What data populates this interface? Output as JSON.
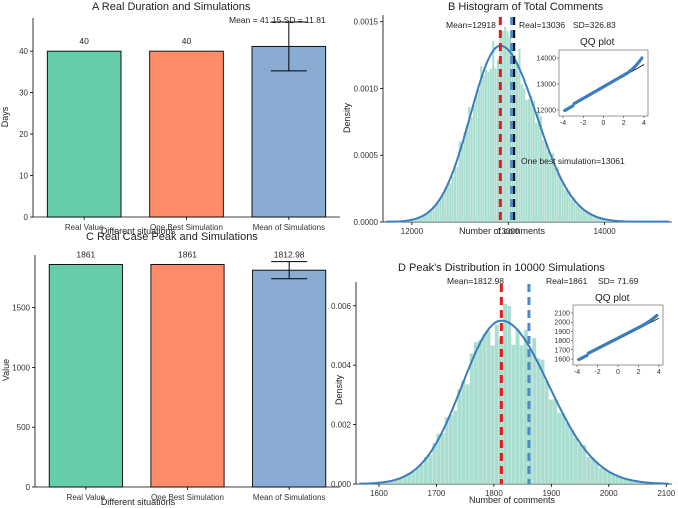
{
  "chart_data": [
    {
      "id": "A",
      "type": "bar",
      "title": "A Real Duration and Simulations",
      "xlabel": "Different situations",
      "ylabel": "Days",
      "categories": [
        "Real Value",
        "One Best Simulation",
        "Mean of Simulations"
      ],
      "values": [
        40,
        40,
        41.15
      ],
      "value_labels": [
        "40",
        "40",
        ""
      ],
      "error_bar": {
        "index": 2,
        "low": 35.25,
        "high": 47.05
      },
      "annotation": "Mean = 41.15 SD = 11.81",
      "ylim": [
        0,
        48
      ],
      "yticks": [
        0,
        10,
        20,
        30,
        40
      ],
      "colors": [
        "#66CDAA",
        "#FF8C69",
        "#8AACD2"
      ]
    },
    {
      "id": "B",
      "type": "histogram",
      "title": "B Histogram of Total Comments",
      "xlabel": "Number of comments",
      "ylabel": "Density",
      "xlim": [
        11700,
        14700
      ],
      "ylim": [
        0,
        0.00155
      ],
      "xticks": [
        12000,
        13000,
        14000
      ],
      "yticks": [
        0,
        0.0005,
        0.001,
        0.0015
      ],
      "ytick_labels": [
        "0.0000",
        "0.0005",
        "0.0010",
        "0.0015"
      ],
      "density_peak": 0.00132,
      "mean": 12918,
      "sd": 326.83,
      "real": 13036,
      "best_simulation": 13061,
      "annotations": {
        "mean": "Mean=12918",
        "real": "Real=13036",
        "sd": "SD=326.83",
        "best": "One  best simulation=13061"
      },
      "qq": {
        "title": "QQ plot",
        "xticks": [
          "-4",
          "-2",
          "0",
          "2",
          "4"
        ],
        "yticks": [
          "12000",
          "13000",
          "14000"
        ]
      }
    },
    {
      "id": "C",
      "type": "bar",
      "title": "C Real Case Peak and Simulations",
      "xlabel": "Different situations",
      "ylabel": "Value",
      "categories": [
        "Real Value",
        "One Best Simulation",
        "Mean of Simulations"
      ],
      "values": [
        1861,
        1861,
        1812.98
      ],
      "value_labels": [
        "1861",
        "1861",
        "1812.98"
      ],
      "error_bar": {
        "index": 2,
        "low": 1741,
        "high": 1885
      },
      "ylim": [
        0,
        1940
      ],
      "yticks": [
        0,
        500,
        1000,
        1500
      ],
      "colors": [
        "#66CDAA",
        "#FF8C69",
        "#8AACD2"
      ]
    },
    {
      "id": "D",
      "type": "histogram",
      "title": "D Peak's Distribution in 10000 Simulations",
      "xlabel": "Number of comments",
      "ylabel": "Density",
      "xlim": [
        1560,
        2110
      ],
      "ylim": [
        0,
        0.0068
      ],
      "xticks": [
        1600,
        1700,
        1800,
        1900,
        2000,
        2100
      ],
      "yticks": [
        0,
        0.002,
        0.004,
        0.006
      ],
      "ytick_labels": [
        "0.000",
        "0.002",
        "0.004",
        "0.006"
      ],
      "density_peak": 0.0055,
      "mean": 1812.98,
      "sd": 71.69,
      "real": 1861,
      "annotations": {
        "mean": "Mean=1812.98",
        "real": "Real=1861",
        "sd": "SD= 71.69"
      },
      "qq": {
        "title": "QQ plot",
        "xticks": [
          "-4",
          "-2",
          "0",
          "2",
          "4"
        ],
        "yticks": [
          "1600",
          "1700",
          "1800",
          "1900",
          "2000",
          "2100"
        ]
      }
    }
  ]
}
